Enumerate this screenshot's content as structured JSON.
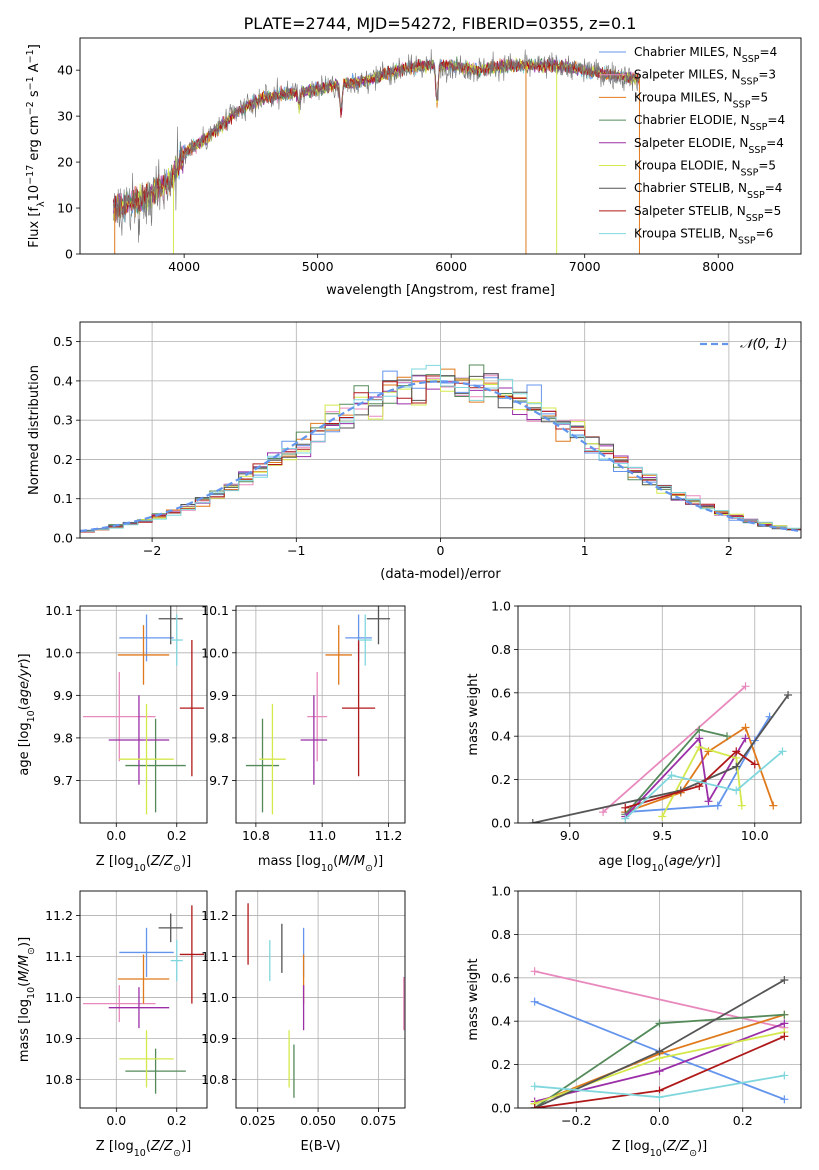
{
  "figure": {
    "title": "PLATE=2744, MJD=54272, FIBERID=0355, z=0.1"
  },
  "series_legend": [
    {
      "name": "Chabrier MILES, N",
      "sub": "SSP",
      "tail": "=4",
      "color": "#6495ed"
    },
    {
      "name": "Salpeter MILES, N",
      "sub": "SSP",
      "tail": "=3",
      "color": "#e889bd"
    },
    {
      "name": "Kroupa MILES, N",
      "sub": "SSP",
      "tail": "=5",
      "color": "#e0791b"
    },
    {
      "name": "Chabrier ELODIE, N",
      "sub": "SSP",
      "tail": "=4",
      "color": "#548a5a"
    },
    {
      "name": "Salpeter ELODIE, N",
      "sub": "SSP",
      "tail": "=4",
      "color": "#9b2fa8"
    },
    {
      "name": "Kroupa ELODIE, N",
      "sub": "SSP",
      "tail": "=5",
      "color": "#d4e84c"
    },
    {
      "name": "Chabrier STELIB, N",
      "sub": "SSP",
      "tail": "=4",
      "color": "#555555"
    },
    {
      "name": "Salpeter STELIB, N",
      "sub": "SSP",
      "tail": "=5",
      "color": "#b01919"
    },
    {
      "name": "Kroupa STELIB, N",
      "sub": "SSP",
      "tail": "=6",
      "color": "#7fd7dd"
    }
  ],
  "chart_data": [
    {
      "id": "spectrum",
      "type": "line",
      "xlabel": "wavelength [Angstrom, rest frame]",
      "ylabel_parts": [
        "Flux [f",
        "λ",
        "10",
        "−17",
        " erg cm",
        "−2",
        " s",
        "−1",
        " A",
        "−1",
        "]"
      ],
      "xlim": [
        3220,
        8620
      ],
      "ylim": [
        0,
        47
      ],
      "xticks": [
        4000,
        5000,
        6000,
        7000,
        8000
      ],
      "yticks": [
        0,
        10,
        20,
        30,
        40
      ],
      "continuum_knots": {
        "x": [
          3480,
          3700,
          3900,
          4000,
          4200,
          4400,
          4600,
          4800,
          5000,
          5200,
          5400,
          5600,
          5800,
          6000,
          6200,
          6400,
          6600,
          6800,
          7000,
          7200,
          7410
        ],
        "y": [
          10,
          12,
          16,
          22,
          26,
          31,
          34,
          35,
          36,
          37,
          38,
          40,
          41,
          41,
          40,
          41,
          41,
          41,
          40,
          39,
          38
        ]
      },
      "x_range_data": [
        3470,
        7410
      ],
      "dips": [
        {
          "x": 5175,
          "depth": 6
        },
        {
          "x": 5893,
          "depth": 8
        },
        {
          "x": 4861,
          "depth": 3
        }
      ],
      "dropouts": [
        {
          "x": 3480,
          "color": "#e0791b"
        },
        {
          "x": 3920,
          "color": "#d4e84c"
        },
        {
          "x": 6560,
          "color": "#e0791b"
        },
        {
          "x": 6790,
          "color": "#d4e84c"
        },
        {
          "x": 7410,
          "color": "#e0791b"
        }
      ]
    },
    {
      "id": "residuals",
      "type": "histogram",
      "xlabel": "(data-model)/error",
      "ylabel": "Normed distribution",
      "xlim": [
        -2.5,
        2.5
      ],
      "ylim": [
        0,
        0.55
      ],
      "xticks": [
        -2,
        -1,
        0,
        1,
        2
      ],
      "yticks": [
        0.0,
        0.1,
        0.2,
        0.3,
        0.4,
        0.5
      ],
      "bin_width": 0.1,
      "reference_curve": {
        "label": "𝒩(0, 1)",
        "color": "#6495ed",
        "style": "dashed"
      }
    },
    {
      "id": "age-vs-Z",
      "type": "scatter",
      "xlabel": "Z [log10(Z/Z⊙)]",
      "ylabel": "age  [log10(age/yr)]",
      "xlim": [
        -0.12,
        0.3
      ],
      "ylim": [
        9.6,
        10.11
      ],
      "xticks": [
        0.0,
        0.2
      ],
      "yticks": [
        9.7,
        9.8,
        9.9,
        10.0,
        10.1
      ],
      "points": [
        {
          "x": 0.1,
          "y": 10.035,
          "xerr": 0.09,
          "yerr": 0.055,
          "color": "#6495ed"
        },
        {
          "x": 0.01,
          "y": 9.85,
          "xerr": 0.12,
          "yerr": 0.105,
          "color": "#e889bd"
        },
        {
          "x": 0.09,
          "y": 9.995,
          "xerr": 0.085,
          "yerr": 0.07,
          "color": "#e0791b"
        },
        {
          "x": 0.13,
          "y": 9.735,
          "xerr": 0.1,
          "yerr": 0.11,
          "color": "#548a5a"
        },
        {
          "x": 0.075,
          "y": 9.795,
          "xerr": 0.1,
          "yerr": 0.105,
          "color": "#9b2fa8"
        },
        {
          "x": 0.1,
          "y": 9.75,
          "xerr": 0.09,
          "yerr": 0.13,
          "color": "#d4e84c"
        },
        {
          "x": 0.18,
          "y": 10.08,
          "xerr": 0.04,
          "yerr": 0.06,
          "color": "#555555"
        },
        {
          "x": 0.25,
          "y": 9.87,
          "xerr": 0.04,
          "yerr": 0.16,
          "color": "#b01919"
        },
        {
          "x": 0.2,
          "y": 10.03,
          "xerr": 0.02,
          "yerr": 0.06,
          "color": "#7fd7dd"
        }
      ]
    },
    {
      "id": "age-vs-mass",
      "type": "scatter",
      "xlabel": "mass [log10(M/M⊙)]",
      "ylabel": "",
      "xlim": [
        10.74,
        11.25
      ],
      "ylim": [
        9.6,
        10.11
      ],
      "xticks": [
        10.8,
        11.0,
        11.2
      ],
      "yticks": [
        9.7,
        9.8,
        9.9,
        10.0,
        10.1
      ],
      "points": [
        {
          "x": 11.11,
          "y": 10.035,
          "xerr": 0.04,
          "yerr": 0.055,
          "color": "#6495ed"
        },
        {
          "x": 10.985,
          "y": 9.85,
          "xerr": 0.03,
          "yerr": 0.105,
          "color": "#e889bd"
        },
        {
          "x": 11.05,
          "y": 9.995,
          "xerr": 0.04,
          "yerr": 0.07,
          "color": "#e0791b"
        },
        {
          "x": 10.82,
          "y": 9.735,
          "xerr": 0.05,
          "yerr": 0.11,
          "color": "#548a5a"
        },
        {
          "x": 10.975,
          "y": 9.795,
          "xerr": 0.04,
          "yerr": 0.105,
          "color": "#9b2fa8"
        },
        {
          "x": 10.85,
          "y": 9.75,
          "xerr": 0.04,
          "yerr": 0.13,
          "color": "#d4e84c"
        },
        {
          "x": 11.17,
          "y": 10.08,
          "xerr": 0.035,
          "yerr": 0.06,
          "color": "#555555"
        },
        {
          "x": 11.11,
          "y": 9.87,
          "xerr": 0.05,
          "yerr": 0.16,
          "color": "#b01919"
        },
        {
          "x": 11.13,
          "y": 10.03,
          "xerr": 0.02,
          "yerr": 0.06,
          "color": "#7fd7dd"
        }
      ]
    },
    {
      "id": "mass-weight-vs-age",
      "type": "line",
      "xlabel": "age  [log10(age/yr)]",
      "ylabel": "mass weight",
      "xlim": [
        8.72,
        10.25
      ],
      "ylim": [
        0,
        1.0
      ],
      "xticks": [
        9.0,
        9.5,
        10.0
      ],
      "yticks": [
        0.0,
        0.2,
        0.4,
        0.6,
        0.8,
        1.0
      ],
      "series": [
        {
          "color": "#6495ed",
          "x": [
            9.3,
            9.8,
            10.0,
            10.08
          ],
          "y": [
            0.05,
            0.08,
            0.38,
            0.49
          ]
        },
        {
          "color": "#e889bd",
          "x": [
            9.18,
            9.95
          ],
          "y": [
            0.05,
            0.63
          ]
        },
        {
          "color": "#e0791b",
          "x": [
            9.3,
            9.6,
            9.75,
            9.95,
            10.1
          ],
          "y": [
            0.05,
            0.14,
            0.33,
            0.44,
            0.08
          ]
        },
        {
          "color": "#548a5a",
          "x": [
            9.3,
            9.7,
            9.85
          ],
          "y": [
            0.04,
            0.43,
            0.4
          ]
        },
        {
          "color": "#9b2fa8",
          "x": [
            9.3,
            9.7,
            9.75,
            9.95
          ],
          "y": [
            0.03,
            0.39,
            0.1,
            0.39
          ]
        },
        {
          "color": "#d4e84c",
          "x": [
            9.5,
            9.7,
            9.9,
            9.93
          ],
          "y": [
            0.03,
            0.35,
            0.3,
            0.08
          ]
        },
        {
          "color": "#555555",
          "x": [
            8.8,
            9.6,
            9.9,
            10.18
          ],
          "y": [
            0.0,
            0.15,
            0.26,
            0.59
          ]
        },
        {
          "color": "#b01919",
          "x": [
            9.3,
            9.7,
            9.9,
            10.0
          ],
          "y": [
            0.07,
            0.17,
            0.33,
            0.27
          ]
        },
        {
          "color": "#7fd7dd",
          "x": [
            9.3,
            9.55,
            9.9,
            10.15
          ],
          "y": [
            0.02,
            0.22,
            0.15,
            0.33
          ]
        }
      ]
    },
    {
      "id": "mass-vs-Z",
      "type": "scatter",
      "xlabel": "Z [log10(Z/Z⊙)]",
      "ylabel": "mass [log10(M/M⊙)]",
      "xlim": [
        -0.12,
        0.3
      ],
      "ylim": [
        10.73,
        11.26
      ],
      "xticks": [
        0.0,
        0.2
      ],
      "yticks": [
        10.8,
        10.9,
        11.0,
        11.1,
        11.2
      ],
      "points": [
        {
          "x": 0.1,
          "y": 11.11,
          "xerr": 0.09,
          "yerr": 0.06,
          "color": "#6495ed"
        },
        {
          "x": 0.01,
          "y": 10.985,
          "xerr": 0.12,
          "yerr": 0.045,
          "color": "#e889bd"
        },
        {
          "x": 0.09,
          "y": 11.045,
          "xerr": 0.085,
          "yerr": 0.06,
          "color": "#e0791b"
        },
        {
          "x": 0.13,
          "y": 10.82,
          "xerr": 0.1,
          "yerr": 0.055,
          "color": "#548a5a"
        },
        {
          "x": 0.075,
          "y": 10.975,
          "xerr": 0.1,
          "yerr": 0.05,
          "color": "#9b2fa8"
        },
        {
          "x": 0.1,
          "y": 10.85,
          "xerr": 0.09,
          "yerr": 0.07,
          "color": "#d4e84c"
        },
        {
          "x": 0.18,
          "y": 11.17,
          "xerr": 0.04,
          "yerr": 0.035,
          "color": "#555555"
        },
        {
          "x": 0.25,
          "y": 11.105,
          "xerr": 0.04,
          "yerr": 0.12,
          "color": "#b01919"
        },
        {
          "x": 0.2,
          "y": 11.09,
          "xerr": 0.02,
          "yerr": 0.05,
          "color": "#7fd7dd"
        }
      ]
    },
    {
      "id": "mass-vs-EBV",
      "type": "scatter",
      "xlabel": "E(B-V)",
      "ylabel": "",
      "xlim": [
        0.016,
        0.086
      ],
      "ylim": [
        10.73,
        11.26
      ],
      "xticks": [
        0.025,
        0.05,
        0.075
      ],
      "yticks": [
        10.8,
        10.9,
        11.0,
        11.1,
        11.2
      ],
      "points": [
        {
          "x": 0.044,
          "y": 11.11,
          "xerr": 0,
          "yerr": 0.06,
          "color": "#6495ed"
        },
        {
          "x": 0.0855,
          "y": 10.985,
          "xerr": 0,
          "yerr": 0.065,
          "color": "#e889bd"
        },
        {
          "x": 0.044,
          "y": 11.045,
          "xerr": 0,
          "yerr": 0.06,
          "color": "#e0791b"
        },
        {
          "x": 0.04,
          "y": 10.82,
          "xerr": 0,
          "yerr": 0.065,
          "color": "#548a5a"
        },
        {
          "x": 0.044,
          "y": 10.975,
          "xerr": 0,
          "yerr": 0.055,
          "color": "#9b2fa8"
        },
        {
          "x": 0.038,
          "y": 10.85,
          "xerr": 0,
          "yerr": 0.07,
          "color": "#d4e84c"
        },
        {
          "x": 0.035,
          "y": 11.12,
          "xerr": 0,
          "yerr": 0.06,
          "color": "#555555"
        },
        {
          "x": 0.021,
          "y": 11.155,
          "xerr": 0,
          "yerr": 0.075,
          "color": "#b01919"
        },
        {
          "x": 0.03,
          "y": 11.09,
          "xerr": 0,
          "yerr": 0.05,
          "color": "#7fd7dd"
        }
      ]
    },
    {
      "id": "mass-weight-vs-Z",
      "type": "line",
      "xlabel": "Z [log10(Z/Z⊙)]",
      "ylabel": "mass weight",
      "xlim": [
        -0.34,
        0.34
      ],
      "ylim": [
        0,
        1.0
      ],
      "xticks": [
        -0.2,
        0.0,
        0.2
      ],
      "yticks": [
        0.0,
        0.2,
        0.4,
        0.6,
        0.8,
        1.0
      ],
      "series": [
        {
          "color": "#6495ed",
          "x": [
            -0.3,
            0.0,
            0.3
          ],
          "y": [
            0.49,
            0.26,
            0.04
          ]
        },
        {
          "color": "#e889bd",
          "x": [
            -0.3,
            0.3
          ],
          "y": [
            0.63,
            0.37
          ]
        },
        {
          "color": "#e0791b",
          "x": [
            -0.3,
            0.0,
            0.3
          ],
          "y": [
            0.02,
            0.25,
            0.43
          ]
        },
        {
          "color": "#548a5a",
          "x": [
            -0.3,
            0.0,
            0.3
          ],
          "y": [
            0.0,
            0.39,
            0.43
          ]
        },
        {
          "color": "#9b2fa8",
          "x": [
            -0.3,
            0.0,
            0.3
          ],
          "y": [
            0.03,
            0.17,
            0.39
          ]
        },
        {
          "color": "#d4e84c",
          "x": [
            -0.3,
            0.0,
            0.3
          ],
          "y": [
            0.02,
            0.23,
            0.35
          ]
        },
        {
          "color": "#555555",
          "x": [
            -0.3,
            0.0,
            0.3
          ],
          "y": [
            0.0,
            0.26,
            0.59
          ]
        },
        {
          "color": "#b01919",
          "x": [
            -0.3,
            0.0,
            0.3
          ],
          "y": [
            0.0,
            0.08,
            0.33
          ]
        },
        {
          "color": "#7fd7dd",
          "x": [
            -0.3,
            0.0,
            0.3
          ],
          "y": [
            0.1,
            0.05,
            0.15
          ]
        }
      ]
    }
  ]
}
